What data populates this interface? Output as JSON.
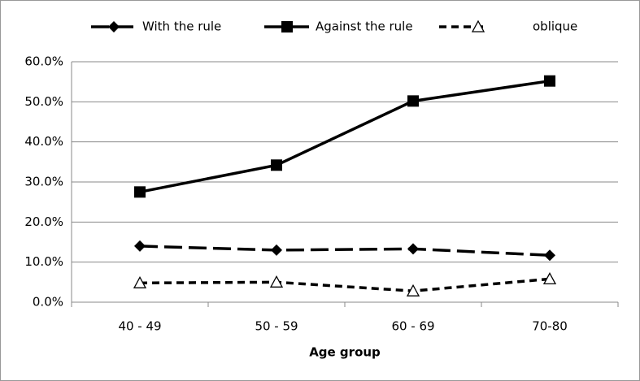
{
  "chart_data": {
    "type": "line",
    "categories": [
      "40 - 49",
      "50 - 59",
      "60 - 69",
      "70-80"
    ],
    "x_label": "Age group",
    "series": [
      {
        "name": "With the rule",
        "color": "#000000",
        "line_style": "dashed",
        "marker": "diamond",
        "values": [
          14.0,
          13.0,
          13.3,
          11.7
        ]
      },
      {
        "name": "Against the rule",
        "color": "#000000",
        "line_style": "solid",
        "marker": "square",
        "values": [
          27.5,
          34.2,
          50.2,
          55.2
        ]
      },
      {
        "name": "oblique",
        "color": "#000000",
        "line_style": "dotted",
        "marker": "open-triangle",
        "values": [
          4.8,
          5.0,
          2.8,
          5.8
        ]
      }
    ],
    "ylim": [
      0,
      60
    ],
    "yticks": [
      {
        "value": 0,
        "label": "0.0%"
      },
      {
        "value": 10,
        "label": "10.0%"
      },
      {
        "value": 20,
        "label": "20.0%"
      },
      {
        "value": 30,
        "label": "30.0%"
      },
      {
        "value": 40,
        "label": "40.0%"
      },
      {
        "value": 50,
        "label": "50.0%"
      },
      {
        "value": 60,
        "label": "60.0%"
      }
    ],
    "grid": true,
    "legend": "top"
  }
}
